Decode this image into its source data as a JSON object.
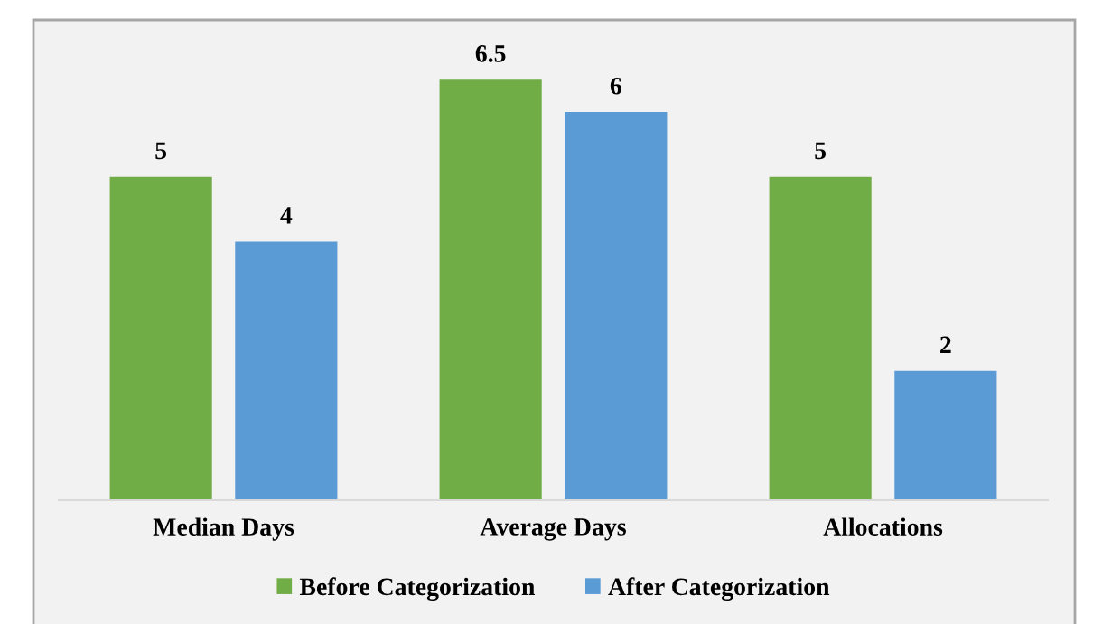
{
  "chart_data": {
    "type": "bar",
    "categories": [
      "Median Days",
      "Average Days",
      "Allocations"
    ],
    "series": [
      {
        "name": "Before Categorization",
        "color": "#70ad47",
        "values": [
          5,
          6.5,
          5
        ]
      },
      {
        "name": "After Categorization",
        "color": "#5b9bd5",
        "values": [
          4,
          6,
          2
        ]
      }
    ],
    "data_labels": true,
    "legend": "bottom",
    "grid": false,
    "tick_labels": "x"
  }
}
